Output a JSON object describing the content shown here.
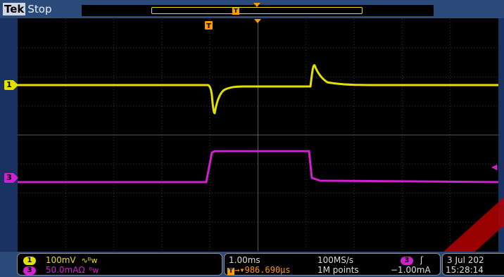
{
  "header": {
    "brand": "Tek",
    "status": "Stop",
    "trigger_marker": "T"
  },
  "graticule": {
    "trigger_marker": "T"
  },
  "channels": [
    {
      "id": "1",
      "color": "#e6e000"
    },
    {
      "id": "3",
      "color": "#d020d0"
    }
  ],
  "readout": {
    "ch1": {
      "badge": "1",
      "scale": "100mV",
      "coupling_icon": "∿ᴮw"
    },
    "ch3": {
      "badge": "3",
      "scale": "50.0mAΩ",
      "coupling_icon": "ᴮw"
    },
    "timebase": "1.00ms",
    "sample_rate": "100MS/s",
    "trigger_position_icon": "T",
    "trigger_position": "→▾986.690µs",
    "record_length": "1M points",
    "trigger_source": "3",
    "trigger_slope": "ʃ",
    "trigger_level": "−1.00mA",
    "date": "3 Jul  202",
    "time": "15:28:14"
  },
  "colors": {
    "ch1": "#e6e000",
    "ch3": "#d020d0",
    "trigger": "#ff9a00",
    "bezel": "#2a4a7a"
  }
}
